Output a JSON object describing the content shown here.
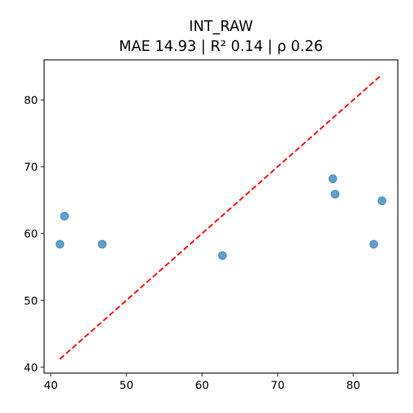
{
  "chart_data": {
    "type": "scatter",
    "title": "INT_RAW",
    "subtitle": "MAE 14.93 | R² 0.14 | ρ 0.26",
    "xlabel": "",
    "ylabel": "",
    "xlim": [
      39.1,
      85.9
    ],
    "ylim": [
      39.1,
      86.0
    ],
    "xticks": [
      40,
      50,
      60,
      70,
      80
    ],
    "yticks": [
      40,
      50,
      60,
      70,
      80
    ],
    "grid": false,
    "points": [
      {
        "x": 41.2,
        "y": 58.4
      },
      {
        "x": 41.8,
        "y": 62.6
      },
      {
        "x": 46.8,
        "y": 58.4
      },
      {
        "x": 62.7,
        "y": 56.7
      },
      {
        "x": 77.3,
        "y": 68.2
      },
      {
        "x": 77.6,
        "y": 65.9
      },
      {
        "x": 82.7,
        "y": 58.4
      },
      {
        "x": 83.8,
        "y": 64.9
      }
    ],
    "reference_line": {
      "x": [
        41.2,
        83.8
      ],
      "y": [
        41.2,
        83.8
      ]
    },
    "colors": {
      "points": "#1f77b4",
      "reference_line": "#ff0000",
      "axes": "#000000"
    }
  }
}
